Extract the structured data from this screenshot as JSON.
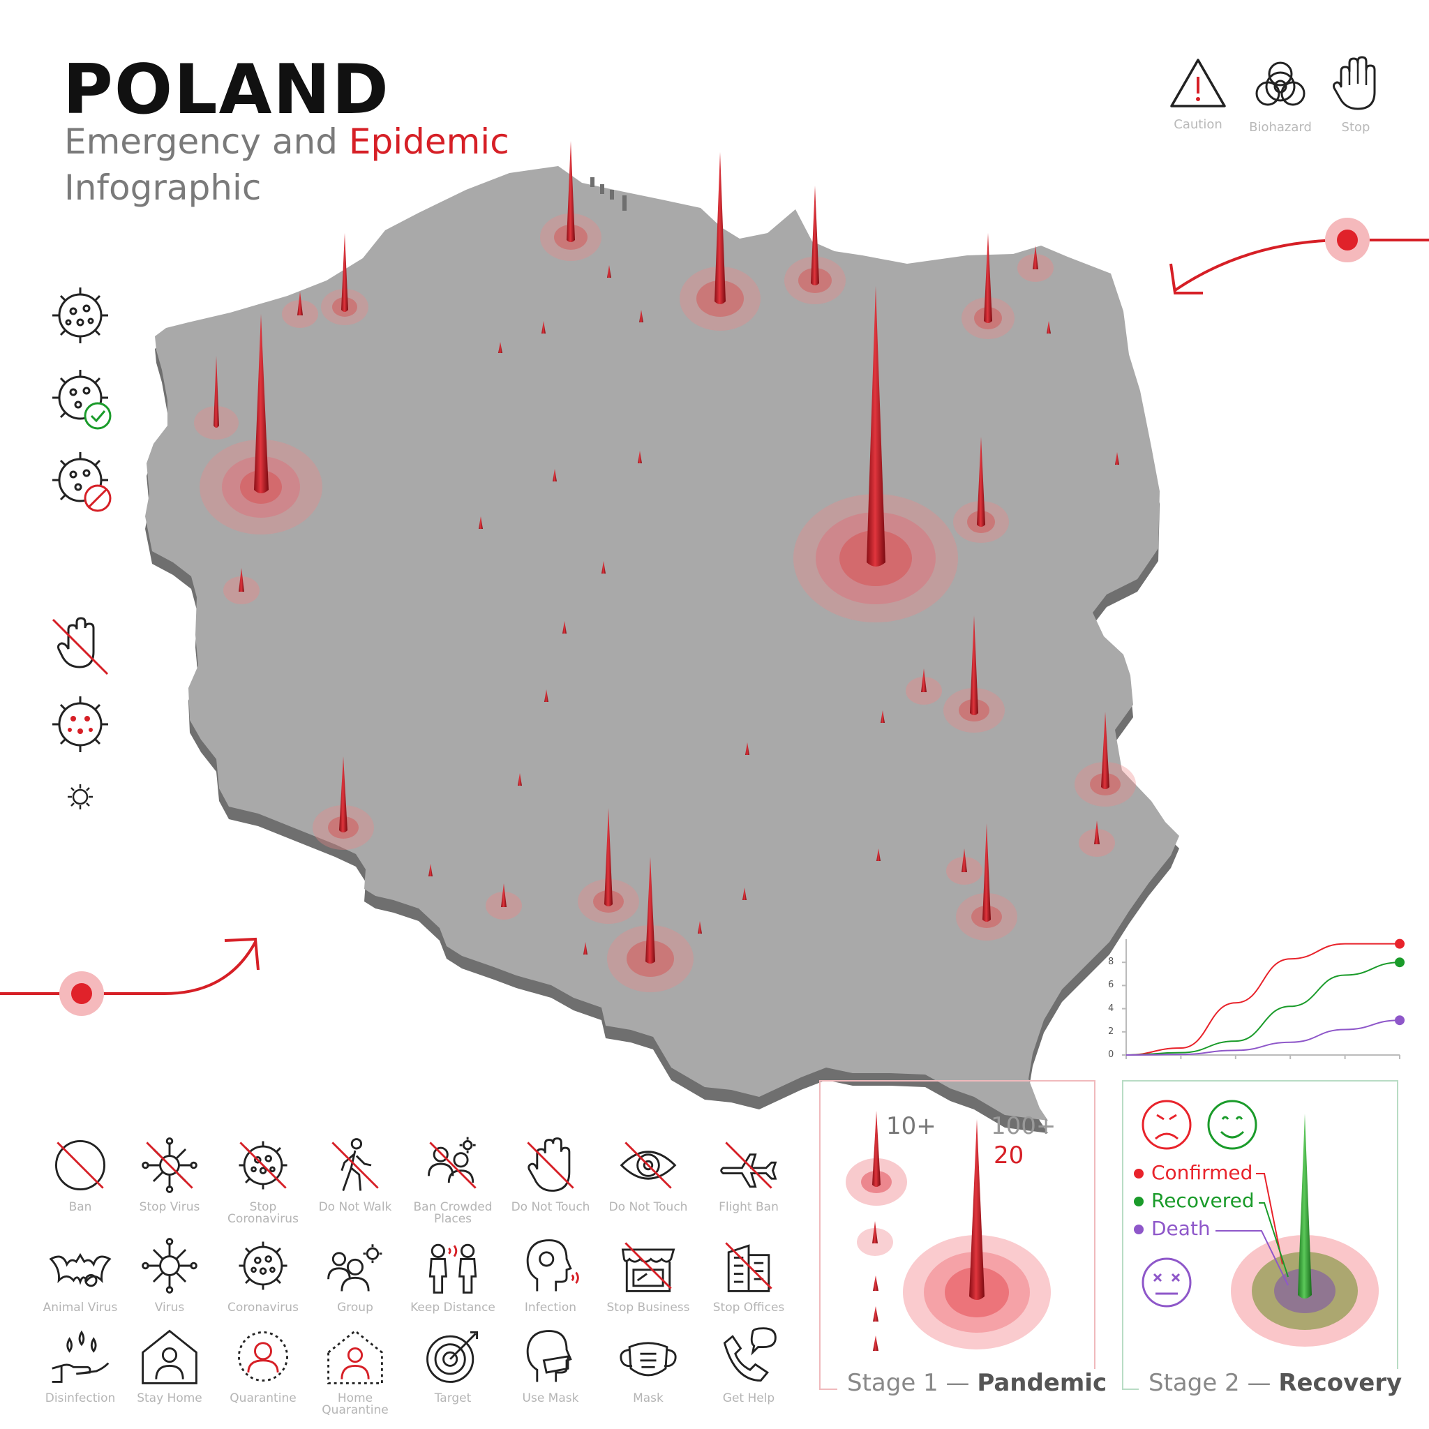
{
  "header": {
    "title": "POLAND",
    "subtitle_part1": "Emergency and ",
    "subtitle_highlight": "Epidemic",
    "subtitle_line2": "Infographic"
  },
  "top_icons": [
    {
      "label": "Caution",
      "icon": "caution-icon"
    },
    {
      "label": "Biohazard",
      "icon": "biohazard-icon"
    },
    {
      "label": "Stop",
      "icon": "stop-hand-icon"
    }
  ],
  "icon_grid": {
    "row1": [
      {
        "label": "Ban",
        "icon": "ban-icon"
      },
      {
        "label": "Stop Virus",
        "icon": "stop-virus-icon"
      },
      {
        "label": "Stop Coronavirus",
        "icon": "stop-coronavirus-icon"
      },
      {
        "label": "Do Not Walk",
        "icon": "do-not-walk-icon"
      },
      {
        "label": "Ban Crowded Places",
        "icon": "ban-crowded-places-icon"
      },
      {
        "label": "Do Not Touch",
        "icon": "do-not-touch-icon"
      },
      {
        "label": "Do Not Touch",
        "icon": "do-not-touch-eye-icon"
      },
      {
        "label": "Flight Ban",
        "icon": "flight-ban-icon"
      }
    ],
    "row2": [
      {
        "label": "Animal Virus",
        "icon": "animal-virus-icon"
      },
      {
        "label": "Virus",
        "icon": "virus-icon"
      },
      {
        "label": "Coronavirus",
        "icon": "coronavirus-icon"
      },
      {
        "label": "Group",
        "icon": "group-icon"
      },
      {
        "label": "Keep Distance",
        "icon": "keep-distance-icon"
      },
      {
        "label": "Infection",
        "icon": "infection-icon"
      },
      {
        "label": "Stop Business",
        "icon": "stop-business-icon"
      },
      {
        "label": "Stop Offices",
        "icon": "stop-offices-icon"
      }
    ],
    "row3": [
      {
        "label": "Disinfection",
        "icon": "disinfection-icon"
      },
      {
        "label": "Stay Home",
        "icon": "stay-home-icon"
      },
      {
        "label": "Quarantine",
        "icon": "quarantine-icon"
      },
      {
        "label": "Home Quarantine",
        "icon": "home-quarantine-icon"
      },
      {
        "label": "Target",
        "icon": "target-icon"
      },
      {
        "label": "Use Mask",
        "icon": "use-mask-icon"
      },
      {
        "label": "Mask",
        "icon": "mask-icon"
      },
      {
        "label": "Get Help",
        "icon": "get-help-icon"
      }
    ]
  },
  "stage1": {
    "title_prefix": "Stage 1 — ",
    "title_bold": "Pandemic",
    "label_small": "10+",
    "label_large": "100+",
    "label_count": "20"
  },
  "stage2": {
    "title_prefix": "Stage 2 — ",
    "title_bold": "Recovery",
    "legend": [
      {
        "label": "Confirmed",
        "color": "#e8232b"
      },
      {
        "label": "Recovered",
        "color": "#1a9b2a"
      },
      {
        "label": "Death",
        "color": "#8e57c9"
      }
    ]
  },
  "colors": {
    "accent_red": "#d61f26",
    "map_gray": "#a9a9a9",
    "recovered_green": "#1a9b2a",
    "death_purple": "#8e57c9"
  },
  "chart_data": {
    "type": "line",
    "ylim": [
      0,
      10
    ],
    "yticks": [
      "0",
      "2",
      "4",
      "6",
      "8"
    ],
    "x": [
      0,
      1,
      2,
      3,
      4,
      5
    ],
    "series": [
      {
        "values": [
          0,
          0.6,
          4.5,
          8.3,
          9.6,
          9.6
        ],
        "color": "#e8232b"
      },
      {
        "values": [
          0,
          0.2,
          1.2,
          4.2,
          6.9,
          8.0
        ],
        "color": "#1a9b2a"
      },
      {
        "values": [
          0,
          0.05,
          0.4,
          1.1,
          2.2,
          3.0
        ],
        "color": "#8e57c9"
      }
    ]
  }
}
